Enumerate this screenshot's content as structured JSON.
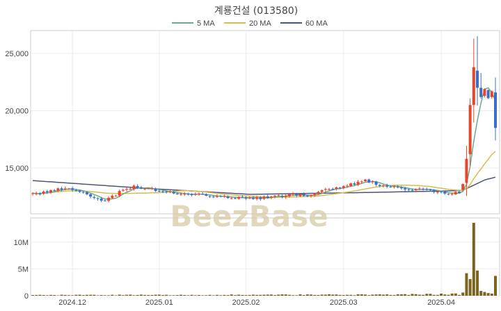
{
  "chart_data": {
    "type": "candlestick",
    "title": "계룡건설 (013580)",
    "watermark": "BeezBase",
    "legend": {
      "placement": "top-center",
      "items": [
        {
          "name": "5 MA",
          "color": "#6aaa8f"
        },
        {
          "name": "20 MA",
          "color": "#d8bc52"
        },
        {
          "name": "60 MA",
          "color": "#4d5577"
        }
      ]
    },
    "colors": {
      "up": "#e8452a",
      "down": "#3c6ec8",
      "volume": "#7a6420",
      "grid": "#ebebeb"
    },
    "price_axis": {
      "ticks": [
        15000,
        20000,
        25000
      ],
      "tick_labels": [
        "15,000",
        "20,000",
        "25,000"
      ],
      "ylim": [
        11000,
        27000
      ]
    },
    "volume_axis": {
      "ticks": [
        0,
        5000000,
        10000000
      ],
      "tick_labels": [
        "0",
        "5M",
        "10M"
      ],
      "ylim": [
        0,
        14500000
      ]
    },
    "x_axis": {
      "tick_labels": [
        "2024.12",
        "2025.01",
        "2025.02",
        "2025.03",
        "2025.04"
      ],
      "tick_index": [
        11,
        35,
        59,
        86,
        113
      ]
    },
    "n_days": 129,
    "price_anchors": [
      [
        0,
        12700
      ],
      [
        8,
        13200
      ],
      [
        12,
        13000
      ],
      [
        16,
        12600
      ],
      [
        19,
        12100
      ],
      [
        22,
        12500
      ],
      [
        25,
        13100
      ],
      [
        28,
        13350
      ],
      [
        33,
        13150
      ],
      [
        36,
        12850
      ],
      [
        44,
        12750
      ],
      [
        52,
        12500
      ],
      [
        62,
        12350
      ],
      [
        72,
        12650
      ],
      [
        78,
        12650
      ],
      [
        80,
        13000
      ],
      [
        86,
        13400
      ],
      [
        92,
        13900
      ],
      [
        97,
        13450
      ],
      [
        104,
        13200
      ],
      [
        110,
        13000
      ],
      [
        112,
        12900
      ],
      [
        115,
        12800
      ],
      [
        118,
        12900
      ]
    ],
    "candles_tail": [
      [
        119,
        13100,
        13600
      ],
      [
        120,
        13700,
        15800
      ],
      [
        121,
        16200,
        20500
      ],
      [
        122,
        20500,
        23800
      ],
      [
        123,
        23500,
        22000
      ],
      [
        124,
        22000,
        21200
      ],
      [
        125,
        21300,
        21900
      ],
      [
        126,
        21800,
        21100
      ],
      [
        127,
        21200,
        21700
      ],
      [
        128,
        21600,
        18500
      ]
    ],
    "ma60_anchors": [
      [
        0,
        13900
      ],
      [
        30,
        13250
      ],
      [
        60,
        12700
      ],
      [
        90,
        12850
      ],
      [
        115,
        13000
      ],
      [
        119,
        13050
      ],
      [
        122,
        13500
      ],
      [
        125,
        13950
      ],
      [
        128,
        14200
      ]
    ],
    "volume_anchors": [
      [
        0,
        120000
      ],
      [
        60,
        160000
      ],
      [
        100,
        200000
      ],
      [
        118,
        300000
      ]
    ],
    "volume_tail": [
      [
        119,
        600000
      ],
      [
        120,
        4200000
      ],
      [
        121,
        3100000
      ],
      [
        122,
        13600000
      ],
      [
        123,
        4700000
      ],
      [
        124,
        900000
      ],
      [
        125,
        700000
      ],
      [
        126,
        500000
      ],
      [
        127,
        400000
      ],
      [
        128,
        3700000
      ]
    ]
  }
}
